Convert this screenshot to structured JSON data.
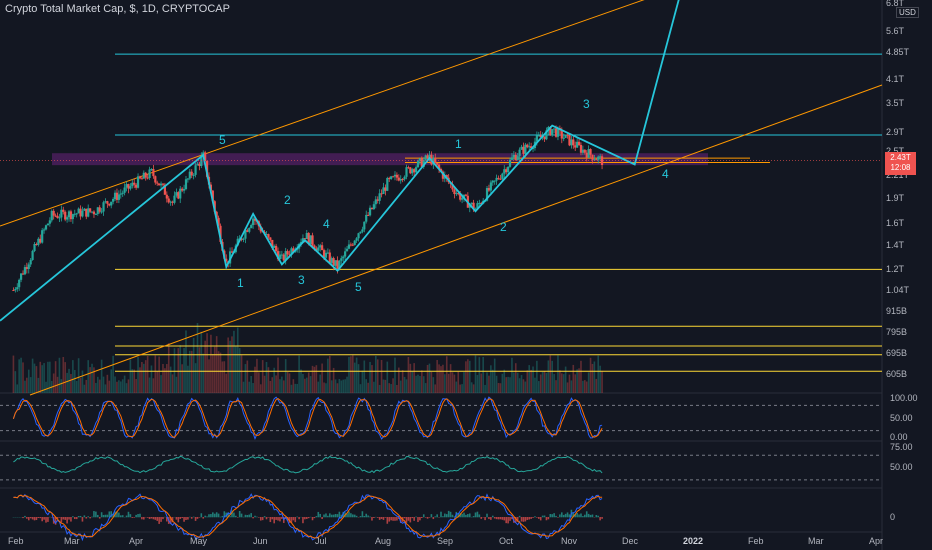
{
  "header": {
    "title": "Crypto Total Market Cap, $, 1D, CRYPTOCAP",
    "currency": "USD"
  },
  "price_axis": {
    "labels": [
      "6.8T",
      "5.6T",
      "4.85T",
      "4.1T",
      "3.5T",
      "2.9T",
      "2.5T",
      "2.21T",
      "1.9T",
      "1.6T",
      "1.4T",
      "1.2T",
      "1.04T",
      "915B",
      "795B",
      "695B",
      "605B"
    ],
    "last_price": "2.43T",
    "countdown": "12:08"
  },
  "indicator_axes": {
    "stoch": [
      "100.00",
      "50.00",
      "0.00"
    ],
    "rsi": [
      "75.00",
      "50.00"
    ],
    "macd": [
      "0"
    ]
  },
  "time_axis": [
    "Feb",
    "Mar",
    "Apr",
    "May",
    "Jun",
    "Jul",
    "Aug",
    "Sep",
    "Oct",
    "Nov",
    "Dec",
    "2022",
    "Feb",
    "Mar",
    "Apr"
  ],
  "wave_labels": [
    "5",
    "1",
    "2",
    "3",
    "4",
    "5",
    "1",
    "2",
    "3",
    "4"
  ],
  "colors": {
    "background": "#131722",
    "up": "#26a69a",
    "down": "#ef5350",
    "wave": "#26c6da",
    "channel": "#ff9800",
    "level": "#fdd835",
    "zone": "#9c27b0"
  },
  "chart_data": {
    "type": "candlestick",
    "title": "Crypto Total Market Cap, $, 1D, CRYPTOCAP",
    "y_scale": "log",
    "ylim": [
      0.55,
      6.9
    ],
    "unit": "T USD",
    "x_range": [
      "2021-01-25",
      "2022-04-30"
    ],
    "closes": [
      {
        "date": "2021-02-01",
        "value": 1.05
      },
      {
        "date": "2021-02-21",
        "value": 1.7
      },
      {
        "date": "2021-03-15",
        "value": 1.75
      },
      {
        "date": "2021-04-14",
        "value": 2.25
      },
      {
        "date": "2021-04-25",
        "value": 1.85
      },
      {
        "date": "2021-05-11",
        "value": 2.5
      },
      {
        "date": "2021-05-23",
        "value": 1.25
      },
      {
        "date": "2021-06-06",
        "value": 1.68
      },
      {
        "date": "2021-06-21",
        "value": 1.28
      },
      {
        "date": "2021-07-03",
        "value": 1.5
      },
      {
        "date": "2021-07-20",
        "value": 1.22
      },
      {
        "date": "2021-08-15",
        "value": 2.1
      },
      {
        "date": "2021-09-06",
        "value": 2.48
      },
      {
        "date": "2021-09-21",
        "value": 1.95
      },
      {
        "date": "2021-09-30",
        "value": 1.78
      },
      {
        "date": "2021-10-20",
        "value": 2.5
      },
      {
        "date": "2021-11-09",
        "value": 2.98
      },
      {
        "date": "2021-11-25",
        "value": 2.6
      },
      {
        "date": "2021-12-05",
        "value": 2.43
      }
    ],
    "wave_points": [
      {
        "label": "5",
        "date": "2021-05-11",
        "value": 2.52
      },
      {
        "label": "1",
        "date": "2021-05-23",
        "value": 1.22
      },
      {
        "label": "2",
        "date": "2021-06-06",
        "value": 1.72
      },
      {
        "label": "3",
        "date": "2021-06-21",
        "value": 1.24
      },
      {
        "label": "4",
        "date": "2021-07-03",
        "value": 1.45
      },
      {
        "label": "5",
        "date": "2021-07-20",
        "value": 1.19
      },
      {
        "label": "1",
        "date": "2021-09-06",
        "value": 2.47
      },
      {
        "label": "2",
        "date": "2021-09-30",
        "value": 1.75
      },
      {
        "label": "3",
        "date": "2021-11-09",
        "value": 3.05
      },
      {
        "label": "4",
        "date": "2021-12-22",
        "value": 2.37
      }
    ],
    "horizontal_levels": [
      4.85,
      2.87,
      1.2,
      0.83,
      0.73,
      0.69,
      0.62
    ],
    "last_price": 2.43
  }
}
